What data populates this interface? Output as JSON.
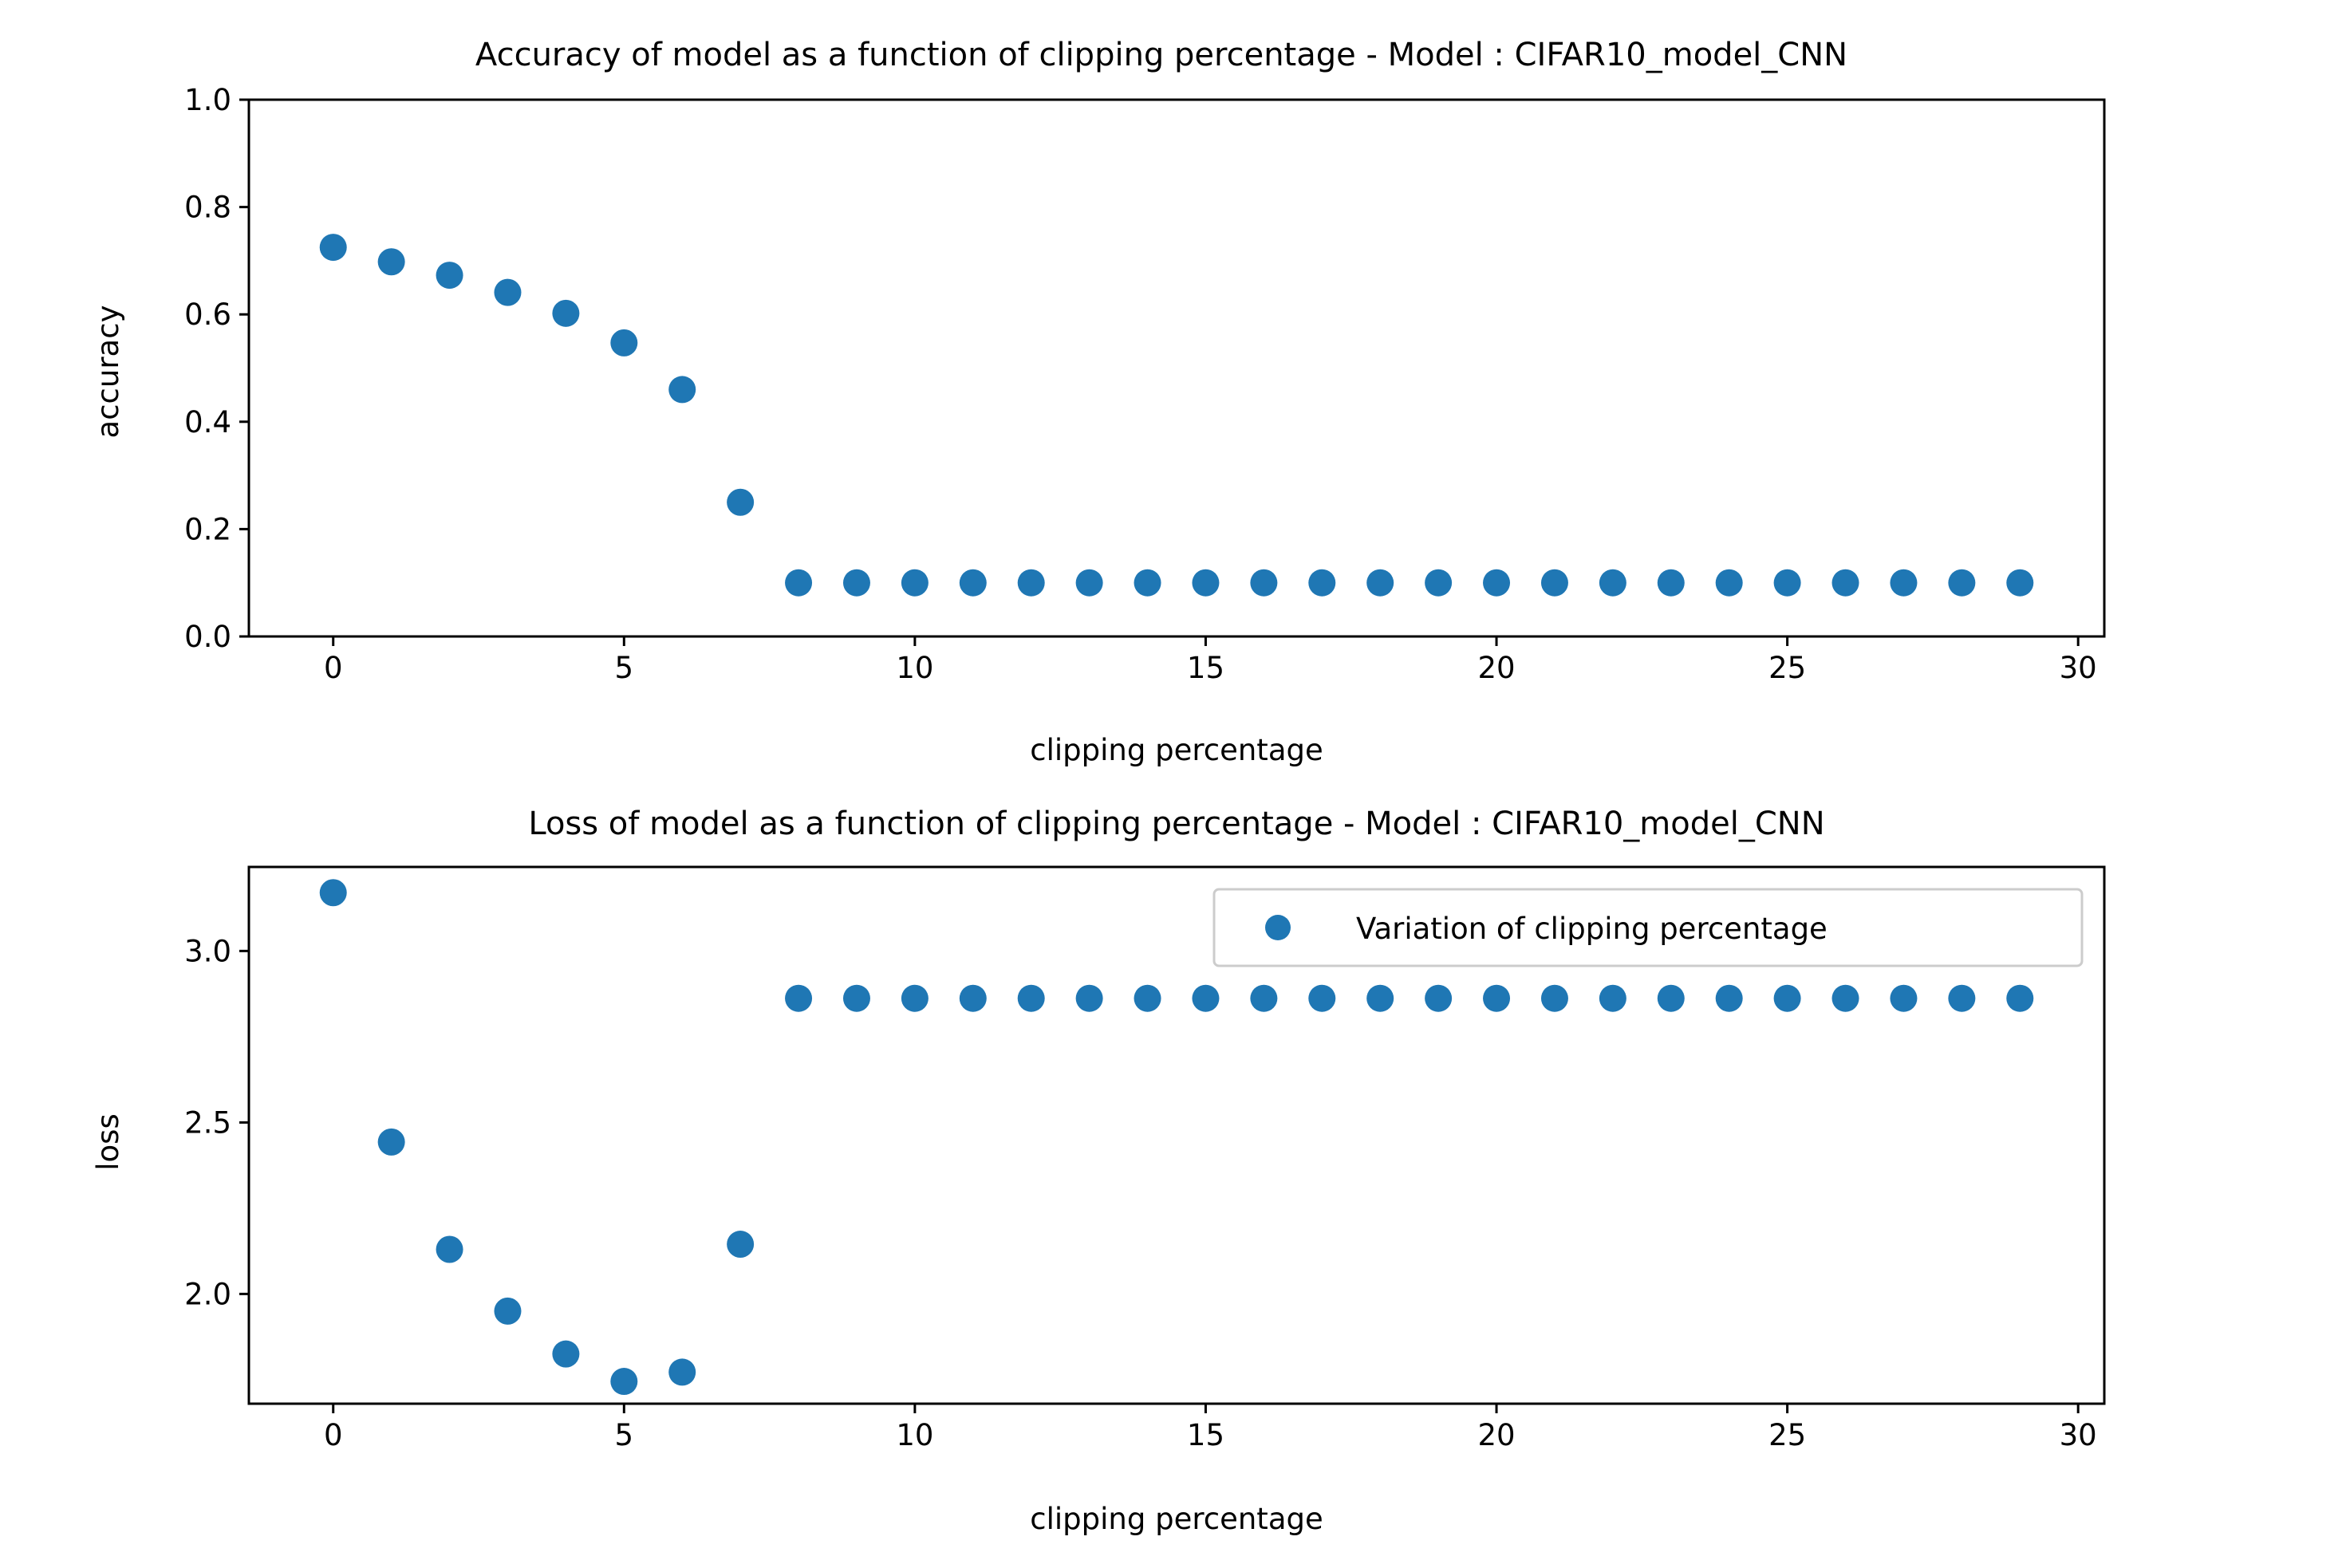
{
  "chart_data": [
    {
      "type": "scatter",
      "title": "Accuracy of model as a function of clipping percentage - Model : CIFAR10_model_CNN",
      "xlabel": "clipping percentage",
      "ylabel": "accuracy",
      "xlim": [
        -1.45,
        30.45
      ],
      "ylim": [
        0.0,
        1.0
      ],
      "xticks": [
        0,
        5,
        10,
        15,
        20,
        25,
        30
      ],
      "xtick_labels": [
        "0",
        "5",
        "10",
        "15",
        "20",
        "25",
        "30"
      ],
      "yticks": [
        0.0,
        0.2,
        0.4,
        0.6,
        0.8,
        1.0
      ],
      "ytick_labels": [
        "0.0",
        "0.2",
        "0.4",
        "0.6",
        "0.8",
        "1.0"
      ],
      "grid": false,
      "color": "#1f77b4",
      "x": [
        0,
        1,
        2,
        3,
        4,
        5,
        6,
        7,
        8,
        9,
        10,
        11,
        12,
        13,
        14,
        15,
        16,
        17,
        18,
        19,
        20,
        21,
        22,
        23,
        24,
        25,
        26,
        27,
        28,
        29
      ],
      "y": [
        0.725,
        0.698,
        0.673,
        0.641,
        0.602,
        0.547,
        0.46,
        0.25,
        0.1,
        0.1,
        0.1,
        0.1,
        0.1,
        0.1,
        0.1,
        0.1,
        0.1,
        0.1,
        0.1,
        0.1,
        0.1,
        0.1,
        0.1,
        0.1,
        0.1,
        0.1,
        0.1,
        0.1,
        0.1,
        0.1
      ]
    },
    {
      "type": "scatter",
      "title": "Loss of model as a function of clipping percentage - Model : CIFAR10_model_CNN",
      "xlabel": "clipping percentage",
      "ylabel": "loss",
      "xlim": [
        -1.45,
        30.45
      ],
      "ylim": [
        1.68,
        3.245
      ],
      "xticks": [
        0,
        5,
        10,
        15,
        20,
        25,
        30
      ],
      "xtick_labels": [
        "0",
        "5",
        "10",
        "15",
        "20",
        "25",
        "30"
      ],
      "yticks": [
        2.0,
        2.5,
        3.0
      ],
      "ytick_labels": [
        "2.0",
        "2.5",
        "3.0"
      ],
      "grid": false,
      "color": "#1f77b4",
      "legend": {
        "position": "top-right",
        "entries": [
          "Variation of clipping percentage"
        ]
      },
      "x": [
        0,
        1,
        2,
        3,
        4,
        5,
        6,
        7,
        8,
        9,
        10,
        11,
        12,
        13,
        14,
        15,
        16,
        17,
        18,
        19,
        20,
        21,
        22,
        23,
        24,
        25,
        26,
        27,
        28,
        29
      ],
      "y": [
        3.17,
        2.443,
        2.13,
        1.95,
        1.825,
        1.745,
        1.772,
        2.145,
        2.862,
        2.862,
        2.862,
        2.862,
        2.862,
        2.862,
        2.862,
        2.862,
        2.862,
        2.862,
        2.862,
        2.862,
        2.862,
        2.862,
        2.862,
        2.862,
        2.862,
        2.862,
        2.862,
        2.862,
        2.862,
        2.862
      ]
    }
  ]
}
